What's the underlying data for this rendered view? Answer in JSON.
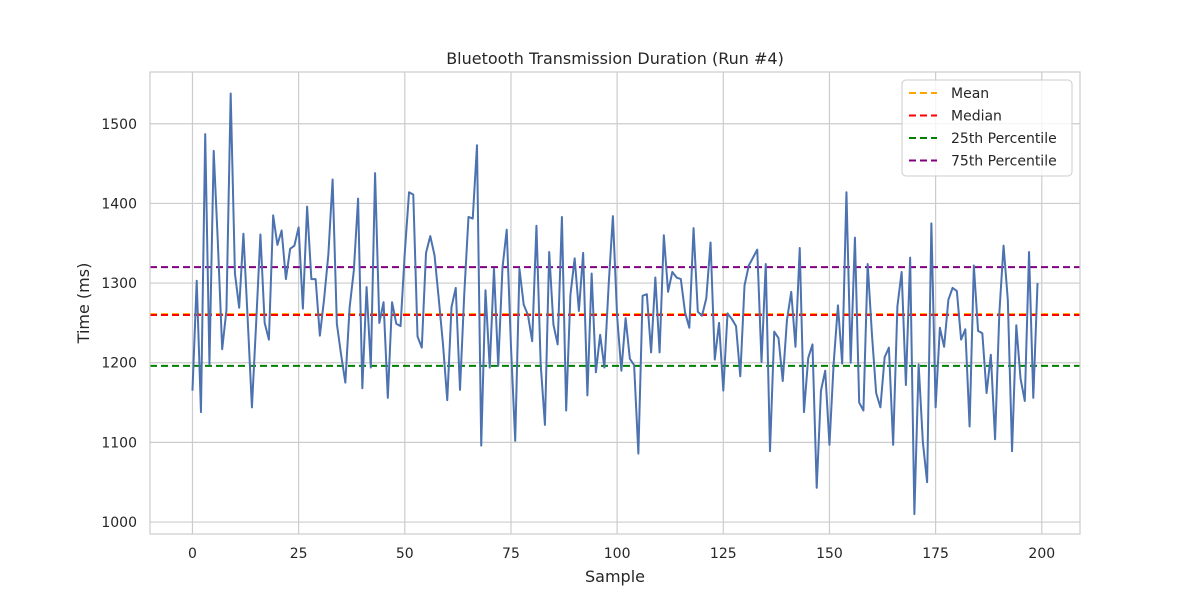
{
  "chart_data": {
    "type": "line",
    "title": "Bluetooth Transmission Duration (Run #4)",
    "xlabel": "Sample",
    "ylabel": "Time (ms)",
    "xlim": [
      -10,
      209
    ],
    "ylim": [
      985,
      1565
    ],
    "x_ticks": [
      0,
      25,
      50,
      75,
      100,
      125,
      150,
      175,
      200
    ],
    "y_ticks": [
      1000,
      1100,
      1200,
      1300,
      1400,
      1500
    ],
    "grid": true,
    "legend_position": "top-right",
    "series": [
      {
        "color": "#4c72b0",
        "x_start": 0,
        "x_step": 1,
        "values": [
          1165,
          1303,
          1138,
          1487,
          1198,
          1466,
          1348,
          1217,
          1266,
          1538,
          1312,
          1269,
          1362,
          1255,
          1144,
          1250,
          1361,
          1250,
          1229,
          1385,
          1348,
          1366,
          1305,
          1343,
          1347,
          1370,
          1268,
          1396,
          1305,
          1305,
          1234,
          1280,
          1336,
          1430,
          1249,
          1210,
          1175,
          1269,
          1316,
          1406,
          1168,
          1295,
          1194,
          1438,
          1250,
          1276,
          1156,
          1276,
          1249,
          1246,
          1338,
          1414,
          1411,
          1233,
          1219,
          1338,
          1359,
          1335,
          1280,
          1223,
          1153,
          1270,
          1294,
          1166,
          1286,
          1383,
          1381,
          1473,
          1096,
          1291,
          1194,
          1318,
          1196,
          1319,
          1367,
          1221,
          1102,
          1318,
          1273,
          1260,
          1227,
          1372,
          1198,
          1122,
          1339,
          1248,
          1223,
          1383,
          1140,
          1285,
          1331,
          1265,
          1338,
          1159,
          1312,
          1188,
          1235,
          1194,
          1297,
          1384,
          1258,
          1190,
          1256,
          1205,
          1197,
          1086,
          1284,
          1286,
          1213,
          1307,
          1213,
          1360,
          1289,
          1314,
          1307,
          1305,
          1263,
          1244,
          1369,
          1264,
          1259,
          1281,
          1351,
          1204,
          1250,
          1165,
          1262,
          1255,
          1246,
          1183,
          1297,
          1322,
          1332,
          1342,
          1201,
          1324,
          1089,
          1239,
          1231,
          1177,
          1254,
          1289,
          1220,
          1344,
          1138,
          1206,
          1223,
          1043,
          1165,
          1190,
          1097,
          1200,
          1272,
          1199,
          1414,
          1200,
          1357,
          1150,
          1140,
          1324,
          1236,
          1162,
          1144,
          1207,
          1219,
          1097,
          1271,
          1314,
          1172,
          1332,
          1010,
          1198,
          1100,
          1050,
          1375,
          1144,
          1244,
          1220,
          1279,
          1294,
          1290,
          1229,
          1242,
          1120,
          1322,
          1240,
          1237,
          1162,
          1210,
          1104,
          1262,
          1347,
          1279,
          1089,
          1247,
          1180,
          1152,
          1339,
          1156,
          1300
        ]
      }
    ],
    "reference_lines": [
      {
        "name": "Mean",
        "value": 1261,
        "color": "#ffa500"
      },
      {
        "name": "Median",
        "value": 1260,
        "color": "#ff0000"
      },
      {
        "name": "25th Percentile",
        "value": 1196,
        "color": "#008000"
      },
      {
        "name": "75th Percentile",
        "value": 1320,
        "color": "#800080"
      }
    ]
  }
}
